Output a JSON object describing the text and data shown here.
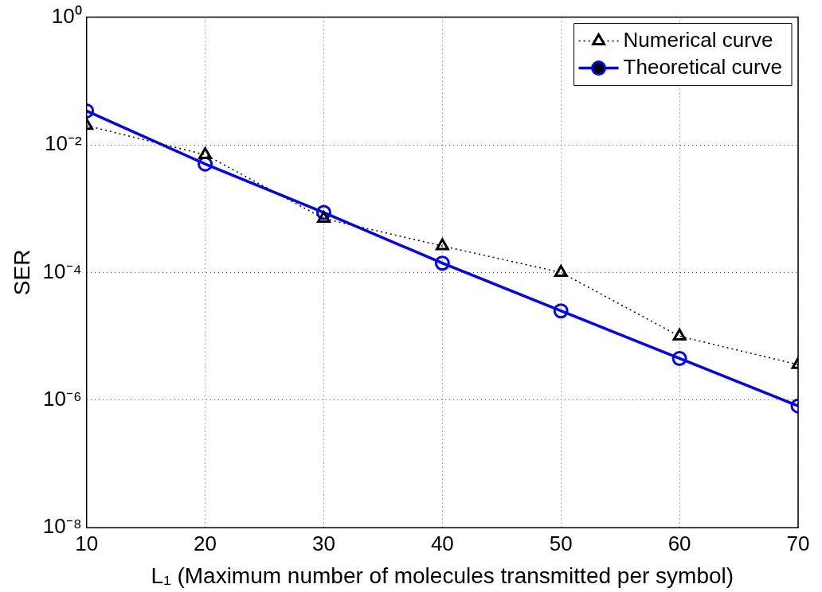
{
  "chart_data": {
    "type": "line",
    "xlabel": "L₁ (Maximum number of molecules transmitted per symbol)",
    "ylabel": "SER",
    "log": "y",
    "x": [
      10,
      20,
      30,
      40,
      50,
      60,
      70
    ],
    "series": [
      {
        "name": "Numerical curve",
        "color": "#000000",
        "marker": "triangle",
        "line_style": "dotted",
        "values": [
          0.02,
          0.007,
          0.0007,
          0.00026,
          0.0001,
          1e-05,
          3.6e-06
        ]
      },
      {
        "name": "Theoretical curve",
        "color": "#0000ff",
        "marker": "circle",
        "line_style": "solid",
        "values": [
          0.034,
          0.005,
          0.00087,
          0.00014,
          2.5e-05,
          4.5e-06,
          8.1e-07
        ]
      }
    ],
    "xlim": [
      10,
      70
    ],
    "xticks": [
      10,
      20,
      30,
      40,
      50,
      60,
      70
    ],
    "ylim": [
      1e-08,
      1
    ],
    "yticks": [
      {
        "value": 1e-08,
        "label": "10⁻⁸"
      },
      {
        "value": 1e-06,
        "label": "10⁻⁶"
      },
      {
        "value": 0.0001,
        "label": "10⁻⁴"
      },
      {
        "value": 0.01,
        "label": "10⁻²"
      },
      {
        "value": 1,
        "label": "10⁰"
      }
    ],
    "grid": true,
    "legend": "top right"
  }
}
